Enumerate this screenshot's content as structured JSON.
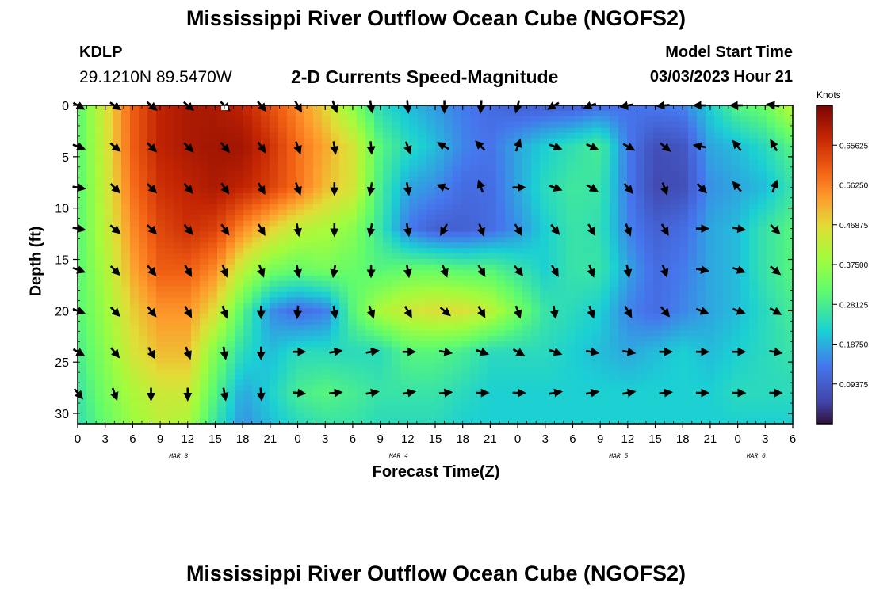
{
  "header": {
    "title": "Mississippi River Outflow Ocean Cube (NGOFS2)",
    "station": "KDLP",
    "coords": "29.1210N  89.5470W",
    "parameter": "2-D Currents Speed-Magnitude",
    "model_start_label": "Model Start Time",
    "model_start_time": "03/03/2023 Hour 21"
  },
  "footer": {
    "title": "Mississippi River Outflow Ocean Cube (NGOFS2)"
  },
  "chart_data": {
    "type": "heatmap",
    "title": "2-D Currents Speed-Magnitude",
    "xlabel": "Forecast Time(Z)",
    "ylabel": "Depth (ft)",
    "x_range": [
      0,
      78
    ],
    "y_range": [
      0,
      31
    ],
    "x_tick_values": [
      0,
      3,
      6,
      9,
      12,
      15,
      18,
      21,
      24,
      27,
      30,
      33,
      36,
      39,
      42,
      45,
      48,
      51,
      54,
      57,
      60,
      63,
      66,
      69,
      72,
      75,
      78
    ],
    "x_tick_labels": [
      "0",
      "3",
      "6",
      "9",
      "12",
      "15",
      "18",
      "21",
      "0",
      "3",
      "6",
      "9",
      "12",
      "15",
      "18",
      "21",
      "0",
      "3",
      "6",
      "9",
      "12",
      "15",
      "18",
      "21",
      "0",
      "3",
      "6"
    ],
    "y_ticks": [
      0,
      5,
      10,
      15,
      20,
      25,
      30
    ],
    "date_labels": [
      {
        "label": "MAR 3",
        "x": 11
      },
      {
        "label": "MAR 4",
        "x": 35
      },
      {
        "label": "MAR 5",
        "x": 59
      },
      {
        "label": "MAR 6",
        "x": 74
      }
    ],
    "colorbar": {
      "units": "Knots",
      "range": [
        0,
        0.75
      ],
      "tick_values": [
        0.65625,
        0.5625,
        0.46875,
        0.375,
        0.28125,
        0.1875,
        0.09375
      ],
      "tick_labels": [
        "0.65625",
        "0.56250",
        "0.46875",
        "0.37500",
        "0.28125",
        "0.18750",
        "0.09375"
      ]
    },
    "speed_grid": {
      "x": [
        0,
        3,
        6,
        9,
        12,
        15,
        18,
        21,
        24,
        27,
        30,
        33,
        36,
        39,
        42,
        45,
        48,
        51,
        54,
        57,
        60,
        63,
        66,
        69,
        72,
        75,
        78
      ],
      "depth": [
        0,
        4,
        8,
        12,
        16,
        20,
        24,
        28,
        31
      ],
      "values": [
        [
          0.3,
          0.45,
          0.6,
          0.68,
          0.7,
          0.7,
          0.68,
          0.62,
          0.55,
          0.47,
          0.36,
          0.24,
          0.2,
          0.17,
          0.14,
          0.12,
          0.1,
          0.1,
          0.1,
          0.12,
          0.13,
          0.14,
          0.15,
          0.22,
          0.3,
          0.33,
          0.42
        ],
        [
          0.3,
          0.44,
          0.6,
          0.68,
          0.7,
          0.71,
          0.71,
          0.66,
          0.58,
          0.52,
          0.45,
          0.3,
          0.24,
          0.2,
          0.15,
          0.13,
          0.18,
          0.22,
          0.25,
          0.28,
          0.14,
          0.07,
          0.08,
          0.18,
          0.2,
          0.24,
          0.3
        ],
        [
          0.3,
          0.43,
          0.58,
          0.66,
          0.68,
          0.7,
          0.68,
          0.64,
          0.58,
          0.5,
          0.45,
          0.28,
          0.18,
          0.16,
          0.12,
          0.12,
          0.18,
          0.24,
          0.27,
          0.26,
          0.14,
          0.06,
          0.07,
          0.16,
          0.18,
          0.2,
          0.26
        ],
        [
          0.3,
          0.42,
          0.55,
          0.63,
          0.66,
          0.64,
          0.55,
          0.48,
          0.42,
          0.4,
          0.36,
          0.26,
          0.14,
          0.1,
          0.1,
          0.12,
          0.16,
          0.22,
          0.26,
          0.25,
          0.15,
          0.1,
          0.12,
          0.18,
          0.2,
          0.26,
          0.3
        ],
        [
          0.3,
          0.4,
          0.52,
          0.6,
          0.6,
          0.55,
          0.42,
          0.34,
          0.32,
          0.34,
          0.32,
          0.3,
          0.32,
          0.32,
          0.3,
          0.3,
          0.26,
          0.22,
          0.26,
          0.26,
          0.18,
          0.12,
          0.14,
          0.18,
          0.2,
          0.26,
          0.3
        ],
        [
          0.3,
          0.38,
          0.48,
          0.54,
          0.54,
          0.46,
          0.3,
          0.16,
          0.12,
          0.14,
          0.3,
          0.4,
          0.44,
          0.46,
          0.46,
          0.42,
          0.34,
          0.26,
          0.24,
          0.22,
          0.15,
          0.12,
          0.15,
          0.18,
          0.2,
          0.24,
          0.28
        ],
        [
          0.28,
          0.36,
          0.45,
          0.5,
          0.5,
          0.35,
          0.24,
          0.2,
          0.24,
          0.24,
          0.24,
          0.24,
          0.3,
          0.3,
          0.28,
          0.24,
          0.24,
          0.24,
          0.22,
          0.2,
          0.18,
          0.2,
          0.22,
          0.2,
          0.22,
          0.24,
          0.26
        ],
        [
          0.26,
          0.34,
          0.4,
          0.44,
          0.44,
          0.3,
          0.18,
          0.22,
          0.28,
          0.3,
          0.28,
          0.26,
          0.26,
          0.26,
          0.24,
          0.22,
          0.22,
          0.22,
          0.22,
          0.22,
          0.22,
          0.22,
          0.22,
          0.22,
          0.24,
          0.24,
          0.24
        ],
        [
          0.25,
          0.32,
          0.38,
          0.42,
          0.4,
          0.26,
          0.16,
          0.2,
          0.24,
          0.26,
          0.26,
          0.24,
          0.24,
          0.24,
          0.22,
          0.22,
          0.22,
          0.22,
          0.22,
          0.22,
          0.22,
          0.22,
          0.22,
          0.22,
          0.22,
          0.22,
          0.22
        ]
      ]
    },
    "vector_grid": {
      "x": [
        0,
        4,
        8,
        12,
        16,
        20,
        24,
        28,
        32,
        36,
        40,
        44,
        48,
        52,
        56,
        60,
        64,
        68,
        72,
        76
      ],
      "depth": [
        0,
        4,
        8,
        12,
        16,
        20,
        24,
        28
      ],
      "directions_deg": [
        [
          120,
          125,
          130,
          130,
          135,
          140,
          150,
          160,
          170,
          175,
          180,
          185,
          195,
          240,
          250,
          260,
          265,
          270,
          270,
          280
        ],
        [
          110,
          130,
          135,
          135,
          140,
          145,
          160,
          170,
          175,
          160,
          300,
          315,
          20,
          110,
          115,
          120,
          130,
          280,
          320,
          330
        ],
        [
          100,
          135,
          135,
          140,
          145,
          150,
          160,
          180,
          190,
          170,
          290,
          340,
          90,
          110,
          120,
          140,
          160,
          135,
          320,
          20
        ],
        [
          100,
          130,
          135,
          140,
          145,
          150,
          170,
          180,
          190,
          170,
          210,
          160,
          150,
          140,
          150,
          160,
          150,
          90,
          100,
          135
        ],
        [
          110,
          135,
          140,
          150,
          160,
          160,
          170,
          190,
          180,
          170,
          160,
          150,
          140,
          150,
          160,
          170,
          160,
          100,
          110,
          130
        ],
        [
          110,
          135,
          140,
          150,
          160,
          180,
          185,
          170,
          160,
          150,
          130,
          150,
          160,
          170,
          160,
          150,
          140,
          110,
          110,
          120
        ],
        [
          120,
          140,
          150,
          160,
          170,
          180,
          90,
          80,
          80,
          90,
          100,
          110,
          120,
          110,
          100,
          100,
          90,
          90,
          90,
          100
        ],
        [
          140,
          160,
          180,
          180,
          170,
          175,
          95,
          85,
          80,
          80,
          85,
          90,
          90,
          80,
          80,
          80,
          85,
          90,
          90,
          90
        ]
      ]
    },
    "markers": [
      {
        "x": 16,
        "depth": 0
      }
    ]
  }
}
